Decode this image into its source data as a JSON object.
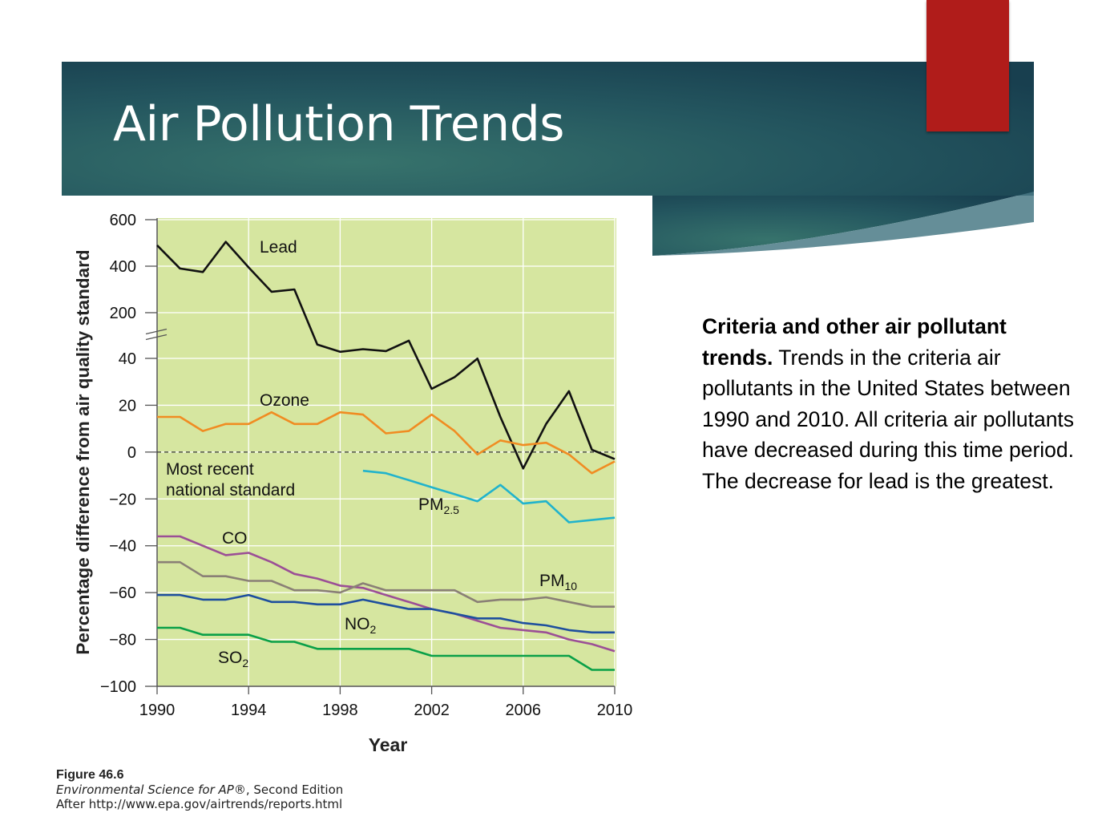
{
  "slide": {
    "title": "Air Pollution Trends",
    "colors": {
      "header_dark": "#183f4f",
      "header_mid": "#2f6a67",
      "accent_red": "#b01c1a",
      "plot_bg": "#d6e6a0"
    }
  },
  "caption": {
    "bold_text": "Criteria and other air pollutant trends.",
    "text": " Trends in the criteria air pollutants in the United States between 1990 and 2010. All criteria air pollutants have decreased during this time period. The decrease for lead is the greatest."
  },
  "source": {
    "figure": "Figure 46.6",
    "book_title": "Environmental Science for AP®",
    "edition": ", Second Edition",
    "after": "After http://www.epa.gov/airtrends/reports.html"
  },
  "chart_data": {
    "type": "line",
    "xlabel": "Year",
    "ylabel": "Percentage difference from air quality standard",
    "xlim": [
      1990,
      2010
    ],
    "x_ticks": [
      "1990",
      "1994",
      "1998",
      "2002",
      "2006",
      "2010"
    ],
    "y_ticks": [
      "600",
      "400",
      "200",
      "40",
      "20",
      "0",
      "−20",
      "−40",
      "−60",
      "−80",
      "−100"
    ],
    "axis_break": "between 40 and 200",
    "grid": true,
    "reference_line": {
      "value": 0,
      "label_line1": "Most recent",
      "label_line2": "national standard"
    },
    "series": [
      {
        "name": "Lead",
        "color": "#111111",
        "x": [
          1990,
          1991,
          1992,
          1993,
          1994,
          1995,
          1996,
          1997,
          1998,
          1999,
          2000,
          2001,
          2002,
          2003,
          2004,
          2005,
          2006,
          2007,
          2008,
          2009,
          2010
        ],
        "y": [
          490,
          390,
          375,
          505,
          395,
          290,
          300,
          155,
          100,
          120,
          105,
          185,
          27,
          32,
          48,
          15,
          -7,
          12,
          26,
          1,
          -3
        ]
      },
      {
        "name": "Ozone",
        "color": "#f08c22",
        "x": [
          1990,
          1991,
          1992,
          1993,
          1994,
          1995,
          1996,
          1997,
          1998,
          1999,
          2000,
          2001,
          2002,
          2003,
          2004,
          2005,
          2006,
          2007,
          2008,
          2009,
          2010
        ],
        "y": [
          15,
          15,
          9,
          12,
          12,
          17,
          12,
          12,
          17,
          16,
          8,
          9,
          16,
          9,
          -1,
          5,
          3,
          4,
          -1,
          -9,
          -4
        ]
      },
      {
        "name": "PM",
        "subscript": "2.5",
        "color": "#21b3cc",
        "x": [
          1999,
          2000,
          2001,
          2002,
          2003,
          2004,
          2005,
          2006,
          2007,
          2008,
          2009,
          2010
        ],
        "y": [
          -8,
          -9,
          -12,
          -15,
          -18,
          -21,
          -14,
          -22,
          -21,
          -30,
          -29,
          -28
        ]
      },
      {
        "name": "CO",
        "color": "#9b4f96",
        "x": [
          1990,
          1991,
          1992,
          1993,
          1994,
          1995,
          1996,
          1997,
          1998,
          1999,
          2000,
          2001,
          2002,
          2003,
          2004,
          2005,
          2006,
          2007,
          2008,
          2009,
          2010
        ],
        "y": [
          -36,
          -36,
          -40,
          -44,
          -43,
          -47,
          -52,
          -54,
          -57,
          -58,
          -61,
          -64,
          -67,
          -69,
          -72,
          -75,
          -76,
          -77,
          -80,
          -82,
          -85
        ]
      },
      {
        "name": "PM",
        "subscript": "10",
        "color": "#8a8076",
        "x": [
          1990,
          1991,
          1992,
          1993,
          1994,
          1995,
          1996,
          1997,
          1998,
          1999,
          2000,
          2001,
          2002,
          2003,
          2004,
          2005,
          2006,
          2007,
          2008,
          2009,
          2010
        ],
        "y": [
          -47,
          -47,
          -53,
          -53,
          -55,
          -55,
          -59,
          -59,
          -60,
          -56,
          -59,
          -59,
          -59,
          -59,
          -64,
          -63,
          -63,
          -62,
          -64,
          -66,
          -66
        ]
      },
      {
        "name": "NO",
        "subscript": "2",
        "color": "#1e4f9e",
        "x": [
          1990,
          1991,
          1992,
          1993,
          1994,
          1995,
          1996,
          1997,
          1998,
          1999,
          2000,
          2001,
          2002,
          2003,
          2004,
          2005,
          2006,
          2007,
          2008,
          2009,
          2010
        ],
        "y": [
          -61,
          -61,
          -63,
          -63,
          -61,
          -64,
          -64,
          -65,
          -65,
          -63,
          -65,
          -67,
          -67,
          -69,
          -71,
          -71,
          -73,
          -74,
          -76,
          -77,
          -77
        ]
      },
      {
        "name": "SO",
        "subscript": "2",
        "color": "#0aa048",
        "x": [
          1990,
          1991,
          1992,
          1993,
          1994,
          1995,
          1996,
          1997,
          1998,
          1999,
          2000,
          2001,
          2002,
          2003,
          2004,
          2005,
          2006,
          2007,
          2008,
          2009,
          2010
        ],
        "y": [
          -75,
          -75,
          -78,
          -78,
          -78,
          -81,
          -81,
          -84,
          -84,
          -84,
          -84,
          -84,
          -87,
          -87,
          -87,
          -87,
          -87,
          -87,
          -87,
          -93,
          -93
        ]
      }
    ]
  }
}
